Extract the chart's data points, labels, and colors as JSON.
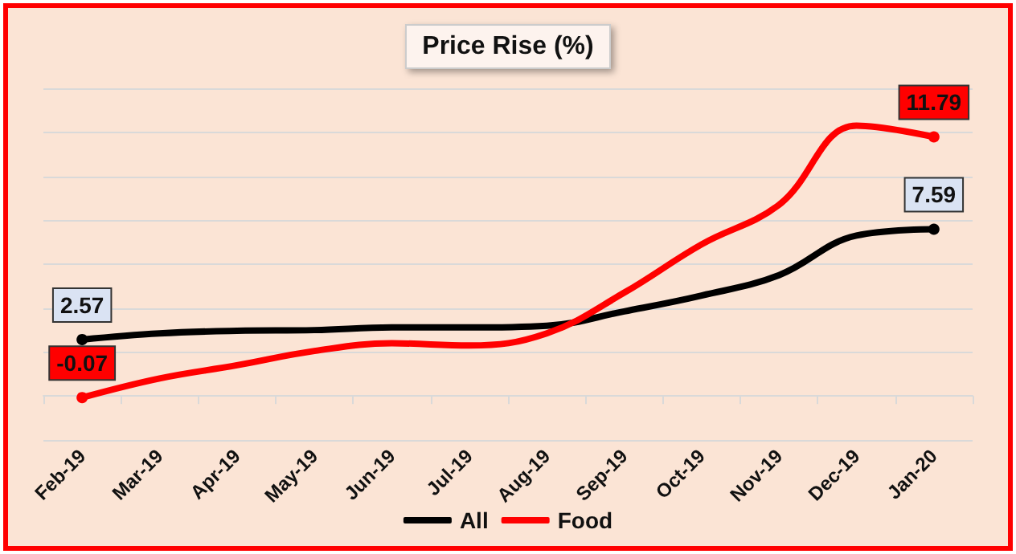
{
  "chart_data": {
    "type": "line",
    "title": "Price Rise (%)",
    "categories": [
      "Feb-19",
      "Mar-19",
      "Apr-19",
      "May-19",
      "Jun-19",
      "Jul-19",
      "Aug-19",
      "Sep-19",
      "Oct-19",
      "Nov-19",
      "Dec-19",
      "Jan-20"
    ],
    "series": [
      {
        "name": "All",
        "color": "#000000",
        "values": [
          2.57,
          2.85,
          2.97,
          3.0,
          3.12,
          3.12,
          3.2,
          3.85,
          4.57,
          5.5,
          7.3,
          7.59
        ],
        "value_labels": [
          "2.57",
          null,
          null,
          null,
          null,
          null,
          null,
          null,
          null,
          null,
          null,
          "7.59"
        ]
      },
      {
        "name": "Food",
        "color": "#ff0000",
        "values": [
          -0.07,
          0.8,
          1.4,
          2.05,
          2.4,
          2.3,
          2.85,
          4.7,
          6.9,
          8.7,
          12.3,
          11.79
        ],
        "value_labels": [
          "-0.07",
          null,
          null,
          null,
          null,
          null,
          null,
          null,
          null,
          null,
          null,
          "11.79"
        ]
      }
    ],
    "ylim": [
      -2,
      14
    ],
    "yticks": [
      {
        "value": -2,
        "label": null
      },
      {
        "value": 0,
        "label": null
      },
      {
        "value": 2,
        "label": null
      },
      {
        "value": 4,
        "label": null
      },
      {
        "value": 6,
        "label": null
      },
      {
        "value": 8,
        "label": null
      },
      {
        "value": 10,
        "label": null
      },
      {
        "value": 12,
        "label": null
      },
      {
        "value": 14,
        "label": null
      }
    ],
    "tick_labels": "x",
    "grid": "y",
    "legend": "bottom",
    "line_style": "solid"
  }
}
